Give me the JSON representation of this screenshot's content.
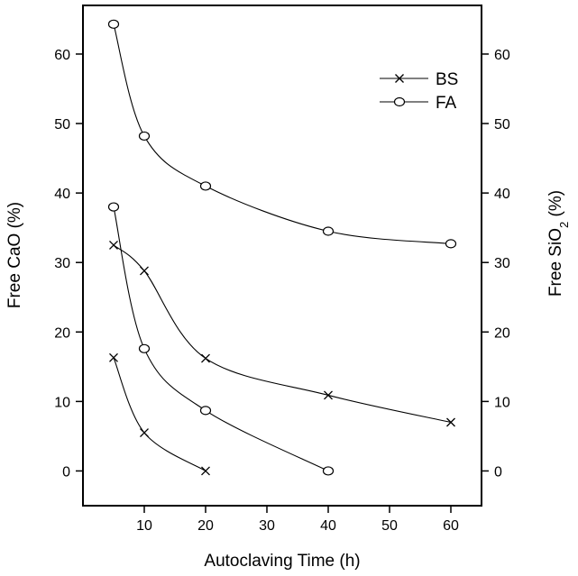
{
  "chart_data": {
    "type": "line",
    "xlabel": "Autoclaving Time (h)",
    "ylabel_left": "Free CaO (%)",
    "ylabel_right": "Free SiO2 (%)",
    "xlim": [
      0,
      65
    ],
    "ylim": [
      -5,
      67
    ],
    "x_ticks": [
      10,
      20,
      30,
      40,
      50,
      60
    ],
    "y_ticks": [
      0,
      10,
      20,
      30,
      40,
      50,
      60
    ],
    "legend_position": "top-right",
    "legend": [
      {
        "name": "BS",
        "marker": "x"
      },
      {
        "name": "FA",
        "marker": "o"
      }
    ],
    "series": [
      {
        "name": "BS",
        "measure": "Free CaO",
        "marker": "x",
        "x": [
          5,
          10,
          20,
          40,
          60
        ],
        "y": [
          32.5,
          28.8,
          16.2,
          10.9,
          7.0
        ]
      },
      {
        "name": "BS",
        "measure": "Free SiO2",
        "marker": "x",
        "x": [
          5,
          10,
          20
        ],
        "y": [
          16.3,
          5.5,
          0.0
        ]
      },
      {
        "name": "FA",
        "measure": "Free CaO",
        "marker": "o",
        "x": [
          5,
          10,
          20,
          40,
          60
        ],
        "y": [
          64.3,
          48.2,
          41.0,
          34.5,
          32.7
        ]
      },
      {
        "name": "FA",
        "measure": "Free SiO2",
        "marker": "o",
        "x": [
          5,
          10,
          20,
          40
        ],
        "y": [
          38.0,
          17.6,
          8.7,
          0.0
        ]
      }
    ]
  }
}
